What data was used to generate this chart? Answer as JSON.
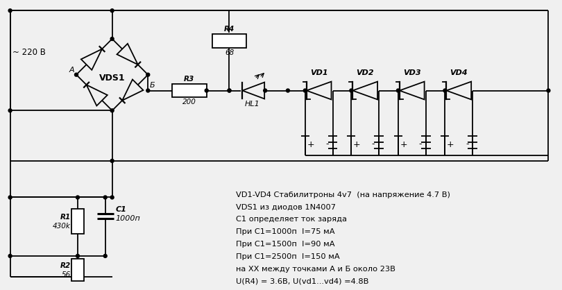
{
  "bg_color": "#f0f0f0",
  "line_color": "#000000",
  "annotations": {
    "title_voltage": "~ 220 В",
    "label_A": "А",
    "label_B": "Б",
    "vds1": "VDS1",
    "r1_label": "R1",
    "r1_val": "430k",
    "r2_label": "R2",
    "r2_val": "56",
    "c1_label": "C1",
    "c1_val": "1000п",
    "r3_label": "R3",
    "r3_val": "200",
    "r4_label": "R4",
    "r4_val": "68",
    "hl1_label": "HL1",
    "vd1": "VD1",
    "vd2": "VD2",
    "vd3": "VD3",
    "vd4": "VD4",
    "info1": "VD1-VD4 Стабилитроны 4v7  (на напряжение 4.7 В)",
    "info2": "VDS1 из диодов 1N4007",
    "info3": "C1 определяет ток заряда",
    "info4": "При С1=1000п  I=75 мА",
    "info5": "При С1=1500п  I=90 мА",
    "info6": "При С1=2500п  I=150 мА",
    "info7": "на ХХ между точками А и Б около 23В",
    "info8": "U(R4) = 3.6В, U(vd1...vd4) =4.8В"
  }
}
